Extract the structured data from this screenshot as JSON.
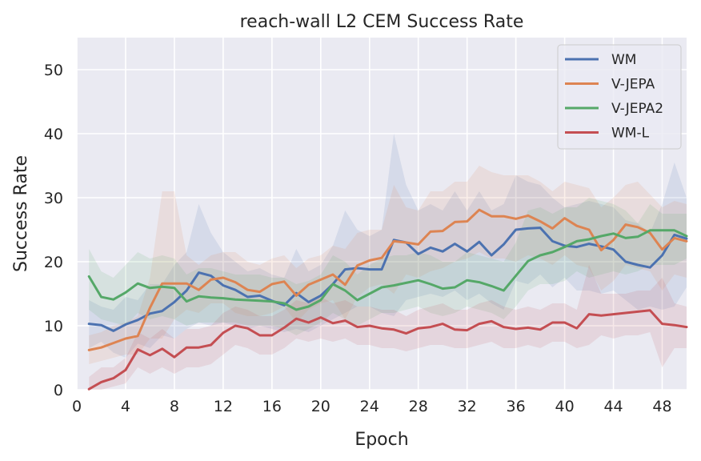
{
  "chart_data": {
    "type": "line",
    "title": "reach-wall L2 CEM Success Rate",
    "xlabel": "Epoch",
    "ylabel": "Success Rate",
    "xlim": [
      0,
      50
    ],
    "ylim": [
      0,
      55
    ],
    "xticks": [
      0,
      4,
      8,
      12,
      16,
      20,
      24,
      28,
      32,
      36,
      40,
      44,
      48
    ],
    "yticks": [
      0,
      10,
      20,
      30,
      40,
      50
    ],
    "grid": true,
    "legend": "top-right",
    "colors": {
      "WM": "#4c72b0",
      "V-JEPA": "#dd8452",
      "V-JEPA2": "#55a868",
      "WM-L": "#c44e52",
      "background": "#eaeaf2",
      "grid": "#ffffff"
    },
    "x": [
      1,
      2,
      3,
      4,
      5,
      6,
      7,
      8,
      9,
      10,
      11,
      12,
      13,
      14,
      15,
      16,
      17,
      18,
      19,
      20,
      21,
      22,
      23,
      24,
      25,
      26,
      27,
      28,
      29,
      30,
      31,
      32,
      33,
      34,
      35,
      36,
      37,
      38,
      39,
      40,
      41,
      42,
      43,
      44,
      45,
      46,
      47,
      48,
      49,
      50
    ],
    "series": [
      {
        "name": "WM",
        "values": [
          10.3,
          10.1,
          9.2,
          10.2,
          10.9,
          11.9,
          12.3,
          13.7,
          15.5,
          18.3,
          17.8,
          16.3,
          15.6,
          14.5,
          14.7,
          13.9,
          13.2,
          15.1,
          13.7,
          14.7,
          16.5,
          18.8,
          19.0,
          18.8,
          18.8,
          23.4,
          23.0,
          21.2,
          22.2,
          21.6,
          22.8,
          21.6,
          23.1,
          21.0,
          22.7,
          25.0,
          25.2,
          25.3,
          23.2,
          22.5,
          22.3,
          22.8,
          22.4,
          21.9,
          20.0,
          19.5,
          19.1,
          21.0,
          24.2,
          23.6
        ],
        "lower": [
          6.5,
          7.5,
          5.8,
          5.0,
          7.2,
          6.5,
          8.5,
          8.0,
          9.5,
          10.5,
          10.0,
          10.5,
          10.0,
          9.5,
          10.0,
          9.5,
          9.0,
          9.5,
          9.0,
          10.0,
          11.0,
          12.0,
          13.0,
          13.0,
          12.0,
          11.5,
          14.0,
          14.5,
          15.0,
          14.5,
          15.5,
          14.0,
          15.0,
          13.5,
          12.5,
          17.0,
          16.5,
          18.0,
          16.0,
          17.5,
          15.5,
          15.5,
          15.0,
          15.5,
          14.0,
          12.5,
          13.0,
          12.5,
          13.0,
          16.0
        ],
        "upper": [
          14.0,
          13.0,
          12.5,
          14.5,
          14.0,
          16.5,
          16.5,
          19.5,
          21.5,
          29.0,
          24.5,
          21.5,
          20.0,
          18.5,
          19.0,
          18.0,
          17.5,
          22.0,
          18.5,
          19.5,
          22.5,
          28.0,
          25.0,
          24.0,
          25.0,
          40.0,
          32.0,
          28.0,
          29.0,
          28.0,
          31.0,
          28.0,
          31.0,
          28.0,
          29.0,
          33.5,
          32.5,
          32.0,
          30.0,
          28.5,
          29.0,
          29.5,
          29.0,
          28.5,
          26.5,
          26.0,
          24.5,
          29.0,
          35.5,
          30.0
        ]
      },
      {
        "name": "V-JEPA",
        "values": [
          6.2,
          6.6,
          7.3,
          8.0,
          8.4,
          12.8,
          16.6,
          16.6,
          16.6,
          15.6,
          17.2,
          17.5,
          16.8,
          15.6,
          15.3,
          16.5,
          16.9,
          14.7,
          16.4,
          17.2,
          18.0,
          16.4,
          19.4,
          20.2,
          20.6,
          23.2,
          23.0,
          22.7,
          24.7,
          24.8,
          26.2,
          26.3,
          28.1,
          27.1,
          27.1,
          26.7,
          27.2,
          26.3,
          25.2,
          26.8,
          25.6,
          25.0,
          21.8,
          23.4,
          25.8,
          25.4,
          24.5,
          21.9,
          23.7,
          23.2
        ],
        "lower": [
          4.0,
          4.5,
          5.0,
          5.5,
          5.5,
          8.0,
          8.0,
          11.0,
          12.5,
          12.0,
          13.5,
          13.5,
          12.0,
          11.5,
          11.5,
          12.0,
          13.0,
          10.5,
          12.5,
          13.5,
          14.0,
          11.0,
          14.5,
          16.0,
          16.5,
          15.0,
          18.0,
          17.5,
          18.5,
          19.0,
          20.0,
          20.5,
          21.5,
          20.5,
          20.5,
          20.0,
          21.0,
          20.5,
          19.5,
          21.0,
          19.5,
          19.0,
          15.5,
          17.0,
          19.5,
          19.0,
          18.5,
          15.5,
          18.0,
          17.5
        ],
        "upper": [
          8.5,
          9.0,
          10.0,
          10.5,
          11.5,
          17.5,
          31.0,
          31.0,
          21.0,
          19.5,
          21.0,
          21.5,
          21.5,
          20.0,
          19.5,
          20.5,
          21.0,
          19.0,
          20.5,
          21.0,
          22.5,
          22.0,
          24.5,
          25.0,
          25.0,
          32.0,
          28.5,
          28.0,
          31.0,
          31.0,
          32.5,
          32.5,
          35.0,
          34.0,
          33.5,
          33.5,
          33.5,
          32.5,
          31.0,
          32.5,
          32.0,
          31.5,
          28.5,
          30.0,
          32.0,
          32.5,
          30.5,
          28.5,
          29.5,
          29.0
        ]
      },
      {
        "name": "V-JEPA2",
        "values": [
          17.7,
          14.5,
          14.1,
          15.2,
          16.6,
          15.9,
          16.1,
          15.9,
          13.8,
          14.6,
          14.4,
          14.3,
          14.1,
          14.0,
          13.9,
          13.8,
          13.5,
          12.5,
          13.0,
          14.0,
          16.5,
          15.5,
          14.0,
          15.0,
          16.0,
          16.3,
          16.7,
          17.1,
          16.5,
          15.8,
          16.0,
          17.1,
          16.8,
          16.2,
          15.5,
          17.8,
          20.1,
          21.0,
          21.5,
          22.3,
          23.2,
          23.5,
          24.0,
          24.4,
          23.7,
          23.9,
          24.9,
          24.9,
          24.9,
          24.0
        ],
        "lower": [
          12.5,
          11.0,
          10.5,
          10.0,
          12.0,
          11.0,
          11.5,
          11.0,
          10.0,
          10.5,
          10.5,
          10.5,
          10.5,
          10.0,
          10.0,
          10.0,
          9.5,
          8.5,
          9.5,
          10.5,
          12.0,
          11.0,
          10.0,
          11.0,
          12.0,
          12.0,
          12.5,
          13.0,
          12.0,
          11.5,
          12.0,
          13.0,
          12.5,
          12.0,
          11.0,
          13.0,
          15.5,
          16.5,
          16.5,
          17.0,
          18.5,
          17.5,
          18.0,
          18.5,
          18.0,
          18.5,
          19.5,
          19.5,
          19.5,
          20.5
        ],
        "upper": [
          22.0,
          18.5,
          17.5,
          19.5,
          21.5,
          20.5,
          21.0,
          20.5,
          18.0,
          19.0,
          19.0,
          18.5,
          18.0,
          18.0,
          18.0,
          17.5,
          17.5,
          16.5,
          17.0,
          18.0,
          21.0,
          20.0,
          18.0,
          19.5,
          20.5,
          21.0,
          21.0,
          21.5,
          21.0,
          20.0,
          20.0,
          21.5,
          21.0,
          20.5,
          20.0,
          23.0,
          28.0,
          28.5,
          27.5,
          28.5,
          28.5,
          30.0,
          29.5,
          29.0,
          28.0,
          26.0,
          29.0,
          27.5,
          27.5,
          27.5
        ]
      },
      {
        "name": "WM-L",
        "values": [
          0.1,
          1.2,
          1.8,
          3.1,
          6.3,
          5.4,
          6.4,
          5.1,
          6.6,
          6.6,
          7.0,
          8.9,
          10.0,
          9.6,
          8.5,
          8.5,
          9.7,
          11.1,
          10.5,
          11.3,
          10.4,
          10.8,
          9.8,
          10.0,
          9.6,
          9.4,
          8.8,
          9.6,
          9.8,
          10.3,
          9.4,
          9.3,
          10.3,
          10.7,
          9.8,
          9.5,
          9.7,
          9.4,
          10.5,
          10.5,
          9.6,
          11.8,
          11.6,
          11.8,
          12.0,
          12.2,
          12.4,
          10.3,
          10.1,
          9.8
        ],
        "lower": [
          0.0,
          0.0,
          0.5,
          1.0,
          3.5,
          2.5,
          3.5,
          2.5,
          3.5,
          3.5,
          4.0,
          5.5,
          7.0,
          6.5,
          5.5,
          5.5,
          6.5,
          8.0,
          7.5,
          8.0,
          7.5,
          8.0,
          7.0,
          7.0,
          6.5,
          6.5,
          6.0,
          6.5,
          7.0,
          7.0,
          6.5,
          6.5,
          7.0,
          7.5,
          6.5,
          6.5,
          7.0,
          6.5,
          7.5,
          7.5,
          6.5,
          7.0,
          8.5,
          8.0,
          8.5,
          8.5,
          9.0,
          3.5,
          6.5,
          6.5
        ],
        "upper": [
          2.0,
          3.5,
          3.5,
          5.0,
          9.0,
          8.0,
          9.5,
          8.0,
          9.5,
          9.5,
          10.0,
          12.0,
          13.0,
          12.5,
          11.5,
          11.5,
          12.5,
          14.0,
          13.5,
          14.5,
          13.5,
          14.0,
          13.0,
          13.0,
          12.5,
          12.5,
          11.5,
          12.5,
          13.0,
          13.5,
          12.5,
          12.5,
          13.5,
          14.0,
          13.0,
          12.5,
          13.0,
          12.5,
          13.5,
          13.5,
          12.5,
          19.5,
          15.0,
          15.0,
          15.0,
          15.5,
          15.5,
          17.5,
          13.5,
          13.0
        ]
      }
    ]
  }
}
